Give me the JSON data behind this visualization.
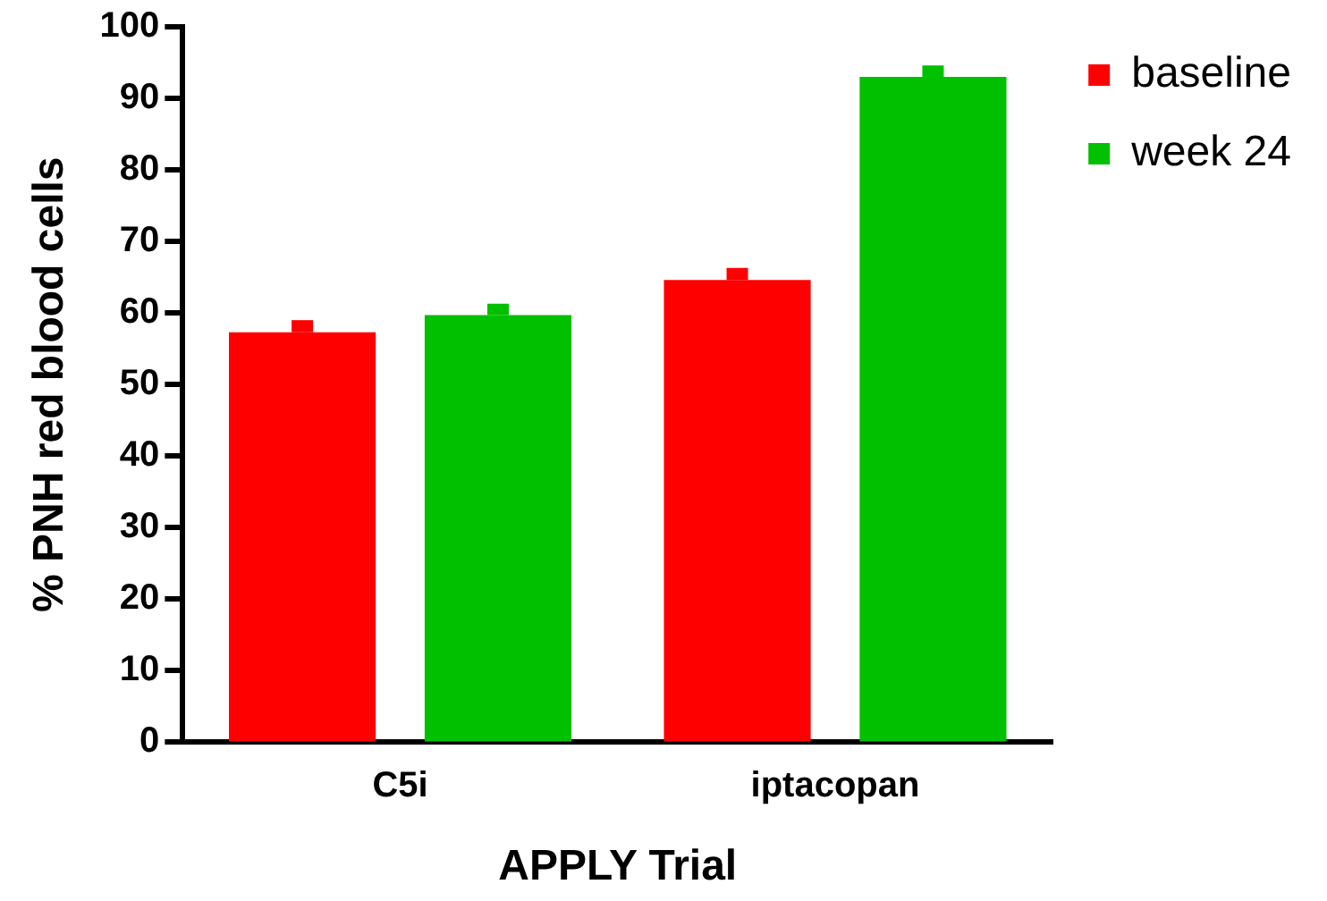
{
  "chart_data": {
    "type": "bar",
    "xlabel": "APPLY Trial",
    "ylabel": "% PNH red blood cells",
    "categories": [
      "C5i",
      "iptacopan"
    ],
    "series": [
      {
        "name": "baseline",
        "color": "#ff0000",
        "values": [
          57.3,
          64.6
        ],
        "errors": [
          [
            57.3,
            59.0
          ],
          [
            64.6,
            66.3
          ]
        ]
      },
      {
        "name": "week 24",
        "color": "#00c000",
        "values": [
          59.7,
          93.0
        ],
        "errors": [
          [
            59.7,
            61.3
          ],
          [
            93.0,
            94.6
          ]
        ]
      }
    ],
    "ylim": [
      0,
      100
    ],
    "yticks": [
      0,
      10,
      20,
      30,
      40,
      50,
      60,
      70,
      80,
      90,
      100
    ],
    "grid": false,
    "legend": "top right"
  }
}
